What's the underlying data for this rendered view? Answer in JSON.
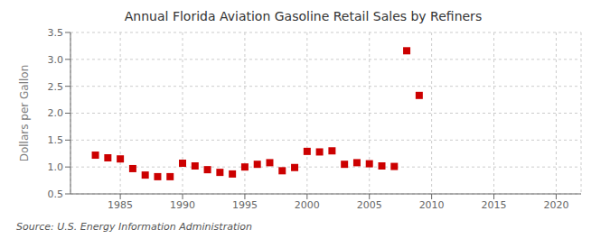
{
  "chart_data": {
    "type": "scatter",
    "title": "Annual Florida Aviation Gasoline Retail Sales by Refiners",
    "ylabel": "Dollars per Gallon",
    "annotations": [
      "Source: U.S. Energy Information Administration"
    ],
    "color": "#cc0000",
    "marker": "square",
    "grid": true,
    "xlim": [
      1981,
      2022
    ],
    "ylim": [
      0.5,
      3.5
    ],
    "xticks": [
      1985,
      1990,
      1995,
      2000,
      2005,
      2010,
      2015,
      2020
    ],
    "yticks": [
      0.5,
      {
        "value": 1,
        "label": "1.0"
      },
      1.5,
      {
        "value": 2,
        "label": "2.0"
      },
      2.5,
      {
        "value": 3,
        "label": "3.0"
      },
      3.5
    ],
    "x": [
      1983,
      1984,
      1985,
      1986,
      1987,
      1988,
      1989,
      1990,
      1991,
      1992,
      1993,
      1994,
      1995,
      1996,
      1997,
      1998,
      1999,
      2000,
      2001,
      2002,
      2003,
      2004,
      2005,
      2006,
      2007,
      2008,
      2009
    ],
    "values": [
      1.22,
      1.17,
      1.15,
      0.97,
      0.85,
      0.82,
      0.82,
      1.07,
      1.02,
      0.95,
      0.9,
      0.87,
      1.0,
      1.05,
      1.08,
      0.93,
      0.99,
      1.29,
      1.28,
      1.3,
      1.05,
      1.08,
      1.06,
      1.02,
      1.01,
      3.16,
      2.33
    ]
  }
}
